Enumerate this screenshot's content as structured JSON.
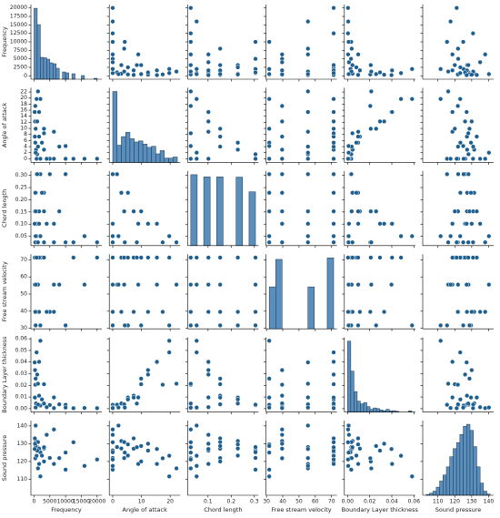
{
  "chart_data": {
    "type": "pairplot",
    "color": "#1f5f8f",
    "hist_color": "#5a8fbd",
    "variables": [
      {
        "name": "Frequency",
        "xlim": [
          -1000,
          21500
        ],
        "xticks": [
          0,
          5000,
          10000,
          15000,
          20000
        ],
        "ylim": [
          -1000,
          21000
        ],
        "yticks": [
          0,
          2500,
          5000,
          7500,
          10000,
          12500,
          15000,
          17500,
          20000
        ]
      },
      {
        "name": "Angle of attack",
        "xlim": [
          -1.2,
          23.5
        ],
        "xticks": [
          0,
          10,
          20
        ],
        "ylim": [
          -1.2,
          23.4
        ],
        "yticks": [
          0,
          2,
          4,
          6,
          8,
          10,
          12,
          14,
          16,
          18,
          20,
          22
        ]
      },
      {
        "name": "Chord length",
        "xlim": [
          0.012,
          0.318
        ],
        "xticks": [
          0.1,
          0.2,
          0.3
        ],
        "ylim": [
          0.012,
          0.318
        ],
        "yticks": [
          {
            "value": 0.05,
            "label": "0.05"
          },
          {
            "value": 0.1,
            "label": "0.10"
          },
          {
            "value": 0.15,
            "label": "0.15"
          },
          {
            "value": 0.2,
            "label": "0.20"
          },
          {
            "value": 0.25,
            "label": "0.25"
          },
          {
            "value": 0.3,
            "label": "0.30"
          }
        ]
      },
      {
        "name": "Free stream velocity",
        "xlim": [
          29.7,
          73.3
        ],
        "xticks": [
          30,
          40,
          50,
          60,
          70
        ],
        "ylim": [
          29.7,
          73.3
        ],
        "yticks": [
          30,
          40,
          50,
          60,
          70
        ]
      },
      {
        "name": "Boundary Layer thickness",
        "xlim": [
          -0.0029,
          0.0612
        ],
        "xticks": [
          {
            "value": 0,
            "label": "0.00"
          },
          {
            "value": 0.02,
            "label": "0.02"
          },
          {
            "value": 0.04,
            "label": "0.04"
          },
          {
            "value": 0.06,
            "label": "0.06"
          }
        ],
        "ylim": [
          -0.0029,
          0.0612
        ],
        "yticks": [
          {
            "value": 0,
            "label": "0.00"
          },
          {
            "value": 0.01,
            "label": "0.01"
          },
          {
            "value": 0.02,
            "label": "0.02"
          },
          {
            "value": 0.03,
            "label": "0.03"
          },
          {
            "value": 0.04,
            "label": "0.04"
          },
          {
            "value": 0.05,
            "label": "0.05"
          },
          {
            "value": 0.06,
            "label": "0.06"
          }
        ]
      },
      {
        "name": "Sound pressure",
        "xlim": [
          101,
          143
        ],
        "xticks": [
          110,
          120,
          130,
          140
        ],
        "ylim": [
          101,
          143
        ],
        "yticks": [
          110,
          120,
          130,
          140
        ]
      }
    ],
    "observations": [
      [
        800,
        0,
        0.3048,
        71.3,
        0.00266,
        126.2
      ],
      [
        2000,
        0,
        0.3048,
        71.3,
        0.00266,
        125.2
      ],
      [
        5000,
        0,
        0.3048,
        39.6,
        0.00311,
        122.0
      ],
      [
        10000,
        0,
        0.3048,
        31.7,
        0.00331,
        115.4
      ],
      [
        1000,
        1.5,
        0.3048,
        55.5,
        0.0034,
        128.1
      ],
      [
        3150,
        3,
        0.2286,
        71.3,
        0.00411,
        127.3
      ],
      [
        630,
        3,
        0.2286,
        39.6,
        0.00451,
        131.5
      ],
      [
        1250,
        4,
        0.1524,
        71.3,
        0.00353,
        130.9
      ],
      [
        8000,
        4,
        0.1524,
        55.5,
        0.00371,
        121.9
      ],
      [
        400,
        5.3,
        0.2286,
        31.7,
        0.00953,
        129.6
      ],
      [
        2500,
        5.3,
        0.2286,
        71.3,
        0.00792,
        123.3
      ],
      [
        1600,
        7.3,
        0.1524,
        39.6,
        0.01114,
        127.2
      ],
      [
        250,
        7.3,
        0.1524,
        71.3,
        0.00953,
        133.0
      ],
      [
        6300,
        8.9,
        0.1016,
        55.5,
        0.00962,
        118.6
      ],
      [
        500,
        9.9,
        0.1524,
        31.7,
        0.0258,
        128.7
      ],
      [
        3150,
        9.9,
        0.1524,
        71.3,
        0.02096,
        120.0
      ],
      [
        315,
        12.3,
        0.1016,
        39.6,
        0.03308,
        130.0
      ],
      [
        1000,
        12.3,
        0.1016,
        71.3,
        0.02929,
        126.1
      ],
      [
        200,
        15.4,
        0.1016,
        55.5,
        0.0397,
        127.0
      ],
      [
        1600,
        15.4,
        0.1016,
        71.3,
        0.04023,
        118.6
      ],
      [
        400,
        17.4,
        0.0254,
        39.6,
        0.02054,
        121.8
      ],
      [
        2000,
        19.7,
        0.0508,
        31.7,
        0.0583,
        111.6
      ],
      [
        800,
        19.7,
        0.0508,
        71.3,
        0.0483,
        123.2
      ],
      [
        1250,
        22.2,
        0.0254,
        55.5,
        0.02142,
        116.1
      ],
      [
        12500,
        0,
        0.0254,
        71.3,
        0.0004,
        130.8
      ],
      [
        20000,
        0,
        0.0254,
        71.3,
        0.0004,
        121.1
      ],
      [
        16000,
        0,
        0.0508,
        55.5,
        0.00058,
        117.5
      ],
      [
        4000,
        0,
        0.1016,
        39.6,
        0.00124,
        135.0
      ],
      [
        6300,
        0,
        0.0254,
        39.6,
        0.00047,
        138.0
      ],
      [
        10000,
        4.2,
        0.0254,
        31.7,
        0.0009,
        125.0
      ],
      [
        500,
        2,
        0.0508,
        55.5,
        0.00096,
        140.2
      ],
      [
        3150,
        8.4,
        0.0254,
        71.3,
        0.0044,
        128.0
      ]
    ],
    "histograms": [
      {
        "bins": [
          0,
          1000,
          2000,
          3000,
          4000,
          5000,
          6000,
          7000,
          8000,
          9000,
          10000,
          11000,
          12000,
          13000,
          14000,
          15000,
          16000,
          17000,
          18000,
          19000,
          20000
        ],
        "counts": [
          390,
          300,
          120,
          118,
          110,
          90,
          85,
          60,
          0,
          40,
          35,
          0,
          30,
          0,
          0,
          20,
          0,
          0,
          0,
          5
        ]
      },
      {
        "bins": [
          0,
          1.5,
          3,
          4.5,
          6,
          7.5,
          9,
          10.5,
          12,
          13.5,
          15,
          16.5,
          18,
          19.5,
          21,
          22.5
        ],
        "counts": [
          330,
          80,
          120,
          140,
          110,
          95,
          100,
          85,
          70,
          75,
          40,
          55,
          20,
          20,
          25
        ]
      },
      {
        "bins": [
          0.0254,
          0.0533,
          0.0813,
          0.1092,
          0.1372,
          0.1651,
          0.193,
          0.221,
          0.2489,
          0.2769,
          0.3048
        ],
        "counts": [
          290,
          0,
          281,
          0,
          281,
          0,
          0,
          280,
          0,
          220
        ]
      },
      {
        "bins": [
          31.7,
          35.66,
          39.62,
          43.58,
          47.54,
          51.5,
          55.46,
          59.42,
          63.38,
          67.34,
          71.3
        ],
        "counts": [
          281,
          465,
          0,
          0,
          0,
          0,
          281,
          0,
          0,
          475
        ]
      },
      {
        "bins": [
          0,
          0.0029,
          0.0058,
          0.0087,
          0.0116,
          0.0145,
          0.0174,
          0.0203,
          0.0232,
          0.0261,
          0.029,
          0.0319,
          0.0348,
          0.0377,
          0.0406,
          0.0435,
          0.0464,
          0.0493,
          0.0522,
          0.0551,
          0.058
        ],
        "counts": [
          520,
          300,
          150,
          80,
          60,
          70,
          40,
          20,
          30,
          25,
          15,
          10,
          20,
          8,
          10,
          5,
          0,
          0,
          0,
          8
        ]
      },
      {
        "bins": [
          103,
          105,
          107,
          109,
          111,
          113,
          115,
          117,
          119,
          121,
          123,
          125,
          127,
          129,
          131,
          133,
          135,
          137,
          139,
          141
        ],
        "counts": [
          2,
          5,
          10,
          20,
          35,
          50,
          70,
          95,
          115,
          130,
          150,
          170,
          175,
          160,
          120,
          70,
          30,
          10,
          3
        ]
      }
    ]
  }
}
